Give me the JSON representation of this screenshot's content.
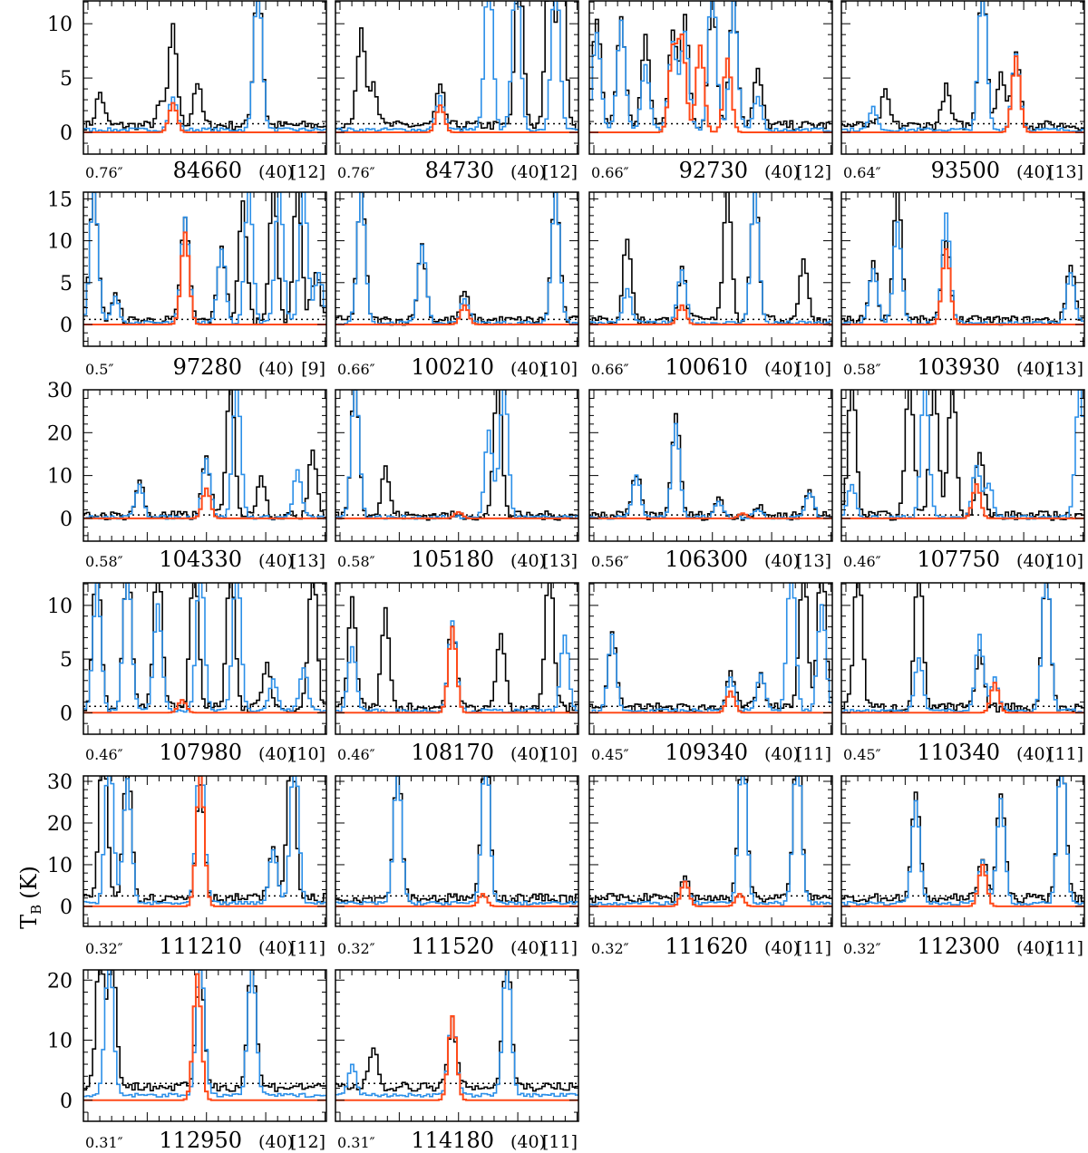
{
  "y_axis_label": "T",
  "y_axis_label_sub": "B",
  "y_axis_label_unit": "(K)",
  "colors": {
    "observed": "#000000",
    "model_total": "#2b8fe8",
    "model_species": "#ff4a1a",
    "threshold": "#000000"
  },
  "chart_data": {
    "type": "line",
    "description_units": "x in channels (0-80), y in T_B (K)",
    "rows": [
      {
        "ylim": [
          -2,
          12.1
        ],
        "yticks": [
          0,
          5,
          10
        ],
        "threshold": 0.8
      },
      {
        "ylim": [
          -2.6,
          15.8
        ],
        "yticks": [
          0,
          5,
          10,
          15
        ],
        "threshold": 0.6
      },
      {
        "ylim": [
          -5.3,
          30
        ],
        "yticks": [
          0,
          10,
          20,
          30
        ],
        "threshold": 0.8
      },
      {
        "ylim": [
          -2,
          12.1
        ],
        "yticks": [
          0,
          5,
          10
        ],
        "threshold": 0.6
      },
      {
        "ylim": [
          -4.8,
          31.3
        ],
        "yticks": [
          0,
          10,
          20,
          30
        ],
        "threshold": 2.5
      },
      {
        "ylim": [
          -3.5,
          21.7
        ],
        "yticks": [
          0,
          10,
          20
        ],
        "threshold": 2.8
      }
    ],
    "panels": [
      {
        "beam": "0.76″",
        "freq": "84660",
        "width": "(40)",
        "n": "[12]",
        "black": [
          [
            5,
            3
          ],
          [
            25,
            2
          ],
          [
            29,
            9
          ],
          [
            37,
            4
          ],
          [
            57,
            14
          ]
        ],
        "blue": [
          [
            29,
            3
          ],
          [
            57,
            14
          ]
        ],
        "red": [
          [
            29,
            2.7
          ]
        ]
      },
      {
        "beam": "0.76″",
        "freq": "84730",
        "width": "(40)",
        "n": "[12]",
        "black": [
          [
            8,
            9
          ],
          [
            12,
            4
          ],
          [
            34,
            3.5
          ],
          [
            60,
            15
          ],
          [
            70,
            15
          ],
          [
            74,
            15
          ]
        ],
        "blue": [
          [
            34,
            3
          ],
          [
            50,
            15
          ],
          [
            59,
            15
          ],
          [
            72,
            15
          ]
        ],
        "red": [
          [
            34,
            2.5
          ]
        ]
      },
      {
        "beam": "0.66″",
        "freq": "92730",
        "width": "(40)",
        "n": "[12]",
        "black": [
          [
            2,
            10
          ],
          [
            10,
            10
          ],
          [
            18,
            8
          ],
          [
            27,
            9
          ],
          [
            31,
            10
          ],
          [
            40,
            12
          ],
          [
            47,
            12
          ],
          [
            55,
            5
          ]
        ],
        "blue": [
          [
            2,
            9
          ],
          [
            10,
            10
          ],
          [
            18,
            6
          ],
          [
            27,
            8
          ],
          [
            31,
            9
          ],
          [
            40,
            14
          ],
          [
            47,
            12
          ],
          [
            55,
            3
          ]
        ],
        "red": [
          [
            27,
            7.5
          ],
          [
            30,
            8.5
          ],
          [
            36,
            8
          ],
          [
            45,
            6.8
          ]
        ]
      },
      {
        "beam": "0.64″",
        "freq": "93500",
        "width": "(40)",
        "n": "[13]",
        "black": [
          [
            14,
            3
          ],
          [
            34,
            3.5
          ],
          [
            46,
            14
          ],
          [
            52,
            5
          ],
          [
            57,
            6.8
          ]
        ],
        "blue": [
          [
            10,
            2
          ],
          [
            46,
            14
          ],
          [
            57,
            7
          ]
        ],
        "red": [
          [
            57,
            7
          ]
        ]
      },
      {
        "beam": "0.5″",
        "freq": "97280",
        "width": "(40)",
        "n": "[9]",
        "black": [
          [
            3,
            16
          ],
          [
            10,
            3
          ],
          [
            33,
            12.5
          ],
          [
            45,
            9
          ],
          [
            52,
            14
          ],
          [
            62,
            16
          ],
          [
            70,
            16
          ],
          [
            76,
            6
          ]
        ],
        "blue": [
          [
            3,
            16
          ],
          [
            10,
            3
          ],
          [
            33,
            12.5
          ],
          [
            45,
            9
          ],
          [
            54,
            16
          ],
          [
            64,
            16
          ],
          [
            72,
            16
          ],
          [
            77,
            6
          ]
        ],
        "red": [
          [
            33,
            11
          ]
        ]
      },
      {
        "beam": "0.66″",
        "freq": "100210",
        "width": "(40)",
        "n": "[10]",
        "black": [
          [
            8,
            16
          ],
          [
            28,
            9
          ],
          [
            42,
            3.3
          ],
          [
            72,
            16
          ]
        ],
        "blue": [
          [
            8,
            16
          ],
          [
            28,
            9.5
          ],
          [
            42,
            3
          ],
          [
            72,
            16
          ]
        ],
        "red": [
          [
            42,
            2.3
          ]
        ]
      },
      {
        "beam": "0.66″",
        "freq": "100610",
        "width": "(40)",
        "n": "[10]",
        "black": [
          [
            12,
            10
          ],
          [
            30,
            6
          ],
          [
            45,
            16
          ],
          [
            54,
            16
          ],
          [
            70,
            7.5
          ]
        ],
        "blue": [
          [
            12,
            4
          ],
          [
            30,
            6.5
          ],
          [
            54,
            16
          ]
        ],
        "red": [
          [
            30,
            2.3
          ]
        ]
      },
      {
        "beam": "0.58″",
        "freq": "103930",
        "width": "(40)",
        "n": "[13]",
        "black": [
          [
            10,
            7
          ],
          [
            18,
            16
          ],
          [
            34,
            10
          ],
          [
            75,
            7
          ]
        ],
        "blue": [
          [
            10,
            6.5
          ],
          [
            18,
            12
          ],
          [
            34,
            13
          ],
          [
            75,
            6
          ]
        ],
        "red": [
          [
            34,
            9
          ]
        ]
      },
      {
        "beam": "0.58″",
        "freq": "104330",
        "width": "(40)",
        "n": "[13]",
        "black": [
          [
            18,
            8
          ],
          [
            40,
            14
          ],
          [
            48,
            32
          ],
          [
            58,
            10
          ],
          [
            75,
            16
          ]
        ],
        "blue": [
          [
            18,
            8
          ],
          [
            40,
            14
          ],
          [
            50,
            32
          ],
          [
            70,
            11
          ]
        ],
        "red": [
          [
            40,
            7
          ]
        ]
      },
      {
        "beam": "0.58″",
        "freq": "105180",
        "width": "(40)",
        "n": "[13]",
        "black": [
          [
            6,
            32
          ],
          [
            16,
            11
          ],
          [
            53,
            32
          ]
        ],
        "blue": [
          [
            6,
            32
          ],
          [
            50,
            20
          ],
          [
            55,
            32
          ]
        ],
        "red": [
          [
            40,
            1.5
          ]
        ]
      },
      {
        "beam": "0.56″",
        "freq": "106300",
        "width": "(40)",
        "n": "[13]",
        "black": [
          [
            15,
            10
          ],
          [
            28,
            24
          ],
          [
            42,
            4
          ],
          [
            55,
            2
          ],
          [
            72,
            6
          ]
        ],
        "blue": [
          [
            15,
            10
          ],
          [
            28,
            22
          ],
          [
            42,
            4
          ],
          [
            55,
            2
          ],
          [
            72,
            6
          ]
        ],
        "red": [
          [
            50,
            1.2
          ]
        ]
      },
      {
        "beam": "0.46″",
        "freq": "107750",
        "width": "(40)",
        "n": "[10]",
        "black": [
          [
            3,
            32
          ],
          [
            22,
            32
          ],
          [
            30,
            32
          ],
          [
            36,
            32
          ],
          [
            45,
            15
          ]
        ],
        "blue": [
          [
            3,
            8
          ],
          [
            27,
            32
          ],
          [
            44,
            12
          ],
          [
            48,
            8
          ],
          [
            78,
            32
          ]
        ],
        "red": [
          [
            44,
            8
          ]
        ]
      },
      {
        "beam": "0.46″",
        "freq": "107980",
        "width": "(40)",
        "n": "[10]",
        "black": [
          [
            4,
            14
          ],
          [
            14,
            14
          ],
          [
            24,
            14
          ],
          [
            36,
            14
          ],
          [
            48,
            14
          ],
          [
            60,
            4
          ],
          [
            75,
            14
          ]
        ],
        "blue": [
          [
            4,
            12
          ],
          [
            14,
            14
          ],
          [
            24,
            10
          ],
          [
            38,
            14
          ],
          [
            50,
            14
          ],
          [
            62,
            3
          ],
          [
            72,
            4
          ]
        ],
        "red": [
          [
            32,
            1.2
          ]
        ]
      },
      {
        "beam": "0.46″",
        "freq": "108170",
        "width": "(40)",
        "n": "[10]",
        "black": [
          [
            5,
            10
          ],
          [
            16,
            9
          ],
          [
            38,
            8
          ],
          [
            54,
            7
          ],
          [
            70,
            14
          ]
        ],
        "blue": [
          [
            5,
            6
          ],
          [
            38,
            8.5
          ],
          [
            75,
            7
          ]
        ],
        "red": [
          [
            38,
            8
          ]
        ]
      },
      {
        "beam": "0.45″",
        "freq": "109340",
        "width": "(40)",
        "n": "[11]",
        "black": [
          [
            7,
            7
          ],
          [
            46,
            3.5
          ],
          [
            56,
            3
          ],
          [
            70,
            14
          ],
          [
            76,
            14
          ]
        ],
        "blue": [
          [
            7,
            7
          ],
          [
            46,
            3
          ],
          [
            56,
            3.5
          ],
          [
            66,
            14
          ],
          [
            76,
            10
          ]
        ],
        "red": [
          [
            46,
            2
          ]
        ]
      },
      {
        "beam": "0.45″",
        "freq": "110340",
        "width": "(40)",
        "n": "[11]",
        "black": [
          [
            5,
            14
          ],
          [
            25,
            14
          ],
          [
            45,
            5
          ],
          [
            67,
            14
          ]
        ],
        "blue": [
          [
            25,
            5
          ],
          [
            45,
            7
          ],
          [
            50,
            3
          ],
          [
            67,
            14
          ]
        ],
        "red": [
          [
            50,
            2.8
          ]
        ]
      },
      {
        "beam": "0.32″",
        "freq": "111210",
        "width": "(40)",
        "n": "[11]",
        "black": [
          [
            6,
            38
          ],
          [
            14,
            35
          ],
          [
            38,
            28
          ],
          [
            62,
            12
          ],
          [
            68,
            38
          ]
        ],
        "blue": [
          [
            8,
            38
          ],
          [
            14,
            30
          ],
          [
            38,
            38
          ],
          [
            62,
            13
          ],
          [
            69,
            38
          ]
        ],
        "red": [
          [
            38,
            32
          ]
        ]
      },
      {
        "beam": "0.32″",
        "freq": "111520",
        "width": "(40)",
        "n": "[11]",
        "black": [
          [
            20,
            33
          ],
          [
            49,
            38
          ]
        ],
        "blue": [
          [
            20,
            33
          ],
          [
            49,
            38
          ]
        ],
        "red": [
          [
            48,
            3
          ]
        ]
      },
      {
        "beam": "0.32″",
        "freq": "111620",
        "width": "(40)",
        "n": "[11]",
        "black": [
          [
            31,
            5
          ],
          [
            50,
            38
          ],
          [
            68,
            38
          ]
        ],
        "blue": [
          [
            31,
            5
          ],
          [
            50,
            38
          ],
          [
            68,
            38
          ]
        ],
        "red": [
          [
            31,
            6
          ],
          [
            49,
            3
          ]
        ]
      },
      {
        "beam": "0.32″",
        "freq": "112300",
        "width": "(40)",
        "n": "[11]",
        "black": [
          [
            24,
            25
          ],
          [
            46,
            10
          ],
          [
            52,
            25
          ],
          [
            72,
            38
          ]
        ],
        "blue": [
          [
            24,
            25
          ],
          [
            46,
            10
          ],
          [
            52,
            25
          ],
          [
            72,
            38
          ]
        ],
        "red": [
          [
            46,
            10
          ]
        ]
      },
      {
        "beam": "0.31″",
        "freq": "112950",
        "width": "(40)",
        "n": "[12]",
        "black": [
          [
            5,
            23
          ],
          [
            9,
            23
          ],
          [
            38,
            20
          ],
          [
            55,
            23
          ]
        ],
        "blue": [
          [
            8,
            24
          ],
          [
            38,
            24
          ],
          [
            55,
            23
          ]
        ],
        "red": [
          [
            37,
            21
          ]
        ]
      },
      {
        "beam": "0.31″",
        "freq": "114180",
        "width": "(40)",
        "n": "[11]",
        "black": [
          [
            12,
            7
          ],
          [
            38,
            11
          ],
          [
            56,
            24
          ]
        ],
        "blue": [
          [
            5,
            5
          ],
          [
            38,
            13
          ],
          [
            56,
            24
          ]
        ],
        "red": [
          [
            38,
            14
          ]
        ]
      }
    ]
  }
}
